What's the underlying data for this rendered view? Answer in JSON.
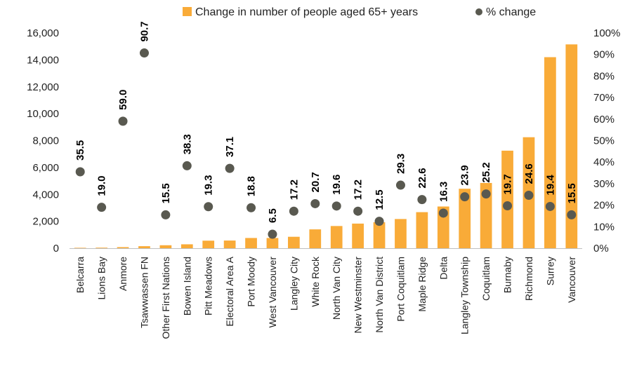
{
  "chart_data": {
    "type": "bar",
    "categories": [
      "Belcarra",
      "Lions Bay",
      "Anmore",
      "Tsawwassen FN",
      "Other First Nations",
      "Bowen Island",
      "Pitt Meadows",
      "Electoral Area A",
      "Port Moody",
      "West Vancouver",
      "Langley City",
      "White Rock",
      "North Van City",
      "New Westminster",
      "North Van District",
      "Port Coquitlam",
      "Maple Ridge",
      "Delta",
      "Langley Township",
      "Coquitlam",
      "Burnaby",
      "Richmond",
      "Surrey",
      "Vancouver"
    ],
    "series": [
      {
        "name": "Change in number of people aged 65+ years",
        "type": "bar",
        "axis": "left",
        "color": "#F9AB38",
        "values": [
          30,
          40,
          80,
          150,
          220,
          290,
          560,
          570,
          760,
          760,
          850,
          1400,
          1650,
          1830,
          1930,
          2170,
          2680,
          3100,
          4420,
          4850,
          7250,
          8250,
          14200,
          15150
        ]
      },
      {
        "name": "% change",
        "type": "scatter",
        "axis": "right",
        "color": "#595950",
        "values": [
          35.5,
          19.0,
          59.0,
          90.7,
          15.5,
          38.3,
          19.3,
          37.1,
          18.8,
          6.5,
          17.2,
          20.7,
          19.6,
          17.2,
          12.5,
          29.3,
          22.6,
          16.3,
          23.9,
          25.2,
          19.7,
          24.6,
          19.4,
          15.5
        ],
        "labels": [
          "35.5",
          "19.0",
          "59.0",
          "90.7",
          "15.5",
          "38.3",
          "19.3",
          "37.1",
          "18.8",
          "6.5",
          "17.2",
          "20.7",
          "19.6",
          "17.2",
          "12.5",
          "29.3",
          "22.6",
          "16.3",
          "23.9",
          "25.2",
          "19.7",
          "24.6",
          "19.4",
          "15.5"
        ]
      }
    ],
    "y_left": {
      "min": 0,
      "max": 16000,
      "ticks": [
        0,
        2000,
        4000,
        6000,
        8000,
        10000,
        12000,
        14000,
        16000
      ],
      "tick_labels": [
        "0",
        "2,000",
        "4,000",
        "6,000",
        "8,000",
        "10,000",
        "12,000",
        "14,000",
        "16,000"
      ]
    },
    "y_right": {
      "min": 0,
      "max": 100,
      "ticks": [
        0,
        10,
        20,
        30,
        40,
        50,
        60,
        70,
        80,
        90,
        100
      ],
      "tick_labels": [
        "0%",
        "10%",
        "20%",
        "30%",
        "40%",
        "50%",
        "60%",
        "70%",
        "80%",
        "90%",
        "100%"
      ]
    },
    "grid": false,
    "legend_position": "top"
  }
}
